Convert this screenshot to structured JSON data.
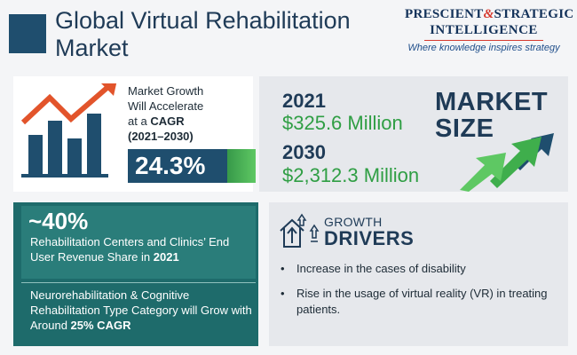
{
  "header": {
    "title": "Global Virtual Rehabilitation Market"
  },
  "logo": {
    "line1_a": "PRESCIENT",
    "line1_amp": "&",
    "line1_b": "STRATEGIC",
    "line2": "INTELLIGENCE",
    "tagline": "Where knowledge inspires strategy",
    "colors": {
      "navy": "#13325a",
      "red": "#d6392e"
    }
  },
  "growth": {
    "line1": "Market Growth",
    "line2": "Will Accelerate",
    "line3_prefix": "at a",
    "line3_bold": "CAGR",
    "period": "(2021–2030)",
    "cagr_value": "24.3%",
    "icon": "growth-bar-chart-icon"
  },
  "market_size": {
    "title_line1": "MARKET",
    "title_line2": "SIZE",
    "entries": [
      {
        "year": "2021",
        "amount": "$325.6 Million"
      },
      {
        "year": "2030",
        "amount": "$2,312.3 Million"
      }
    ],
    "icon": "upward-arrows-icon"
  },
  "end_user": {
    "percent": "~40%",
    "share_text": "Rehabilitation Centers and Clinics’ End User Revenue Share in",
    "share_year": "2021"
  },
  "type_category": {
    "text": "Neurorehabilitation & Cognitive Rehabilitation Type Category will Grow with Around",
    "bold": "25% CAGR"
  },
  "drivers": {
    "label_small": "GROWTH",
    "label_big": "DRIVERS",
    "icon": "growth-drivers-icon",
    "items": [
      "Increase in the cases of disability",
      "Rise in the usage of virtual reality (VR) in treating patients."
    ]
  },
  "colors": {
    "navy": "#1f4e6e",
    "green": "#2f9e44",
    "teal": "#1e6b6b",
    "orange_arrow": "#e2542b"
  }
}
